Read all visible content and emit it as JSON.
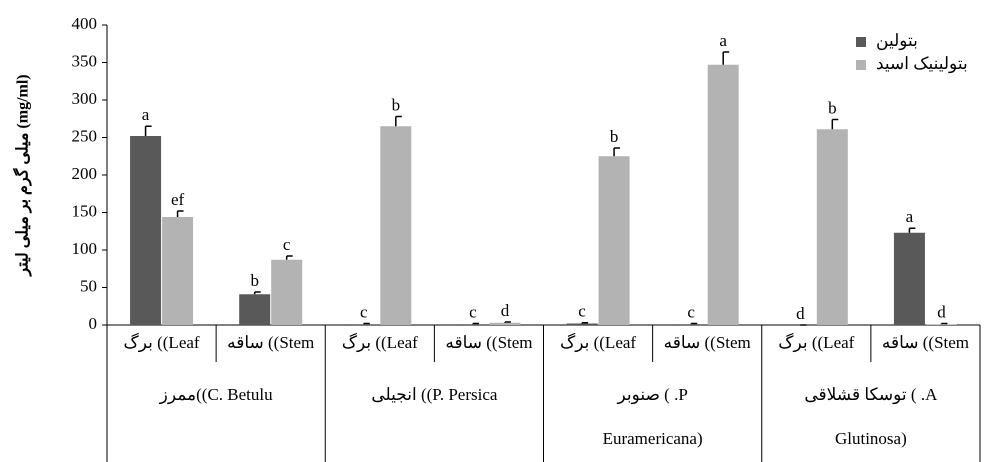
{
  "chart_data": {
    "type": "bar",
    "y_label": "میلی گرم بر میلی لیتر (mg/ml)",
    "categories": [
      "برگ ((Leaf",
      "ساقه ((Stem",
      "برگ ((Leaf",
      "ساقه ((Stem",
      "برگ ((Leaf",
      "ساقه ((Stem",
      "برگ ((Leaf",
      "ساقه ((Stem"
    ],
    "groups": [
      [
        "ممرز((C. Betulu"
      ],
      [
        "انجیلی ((P. Persica"
      ],
      [
        "صنوبر ( .P",
        "Euramericana)"
      ],
      [
        "توسکا قشلاقی ( .A",
        "Glutinosa)"
      ]
    ],
    "series": [
      {
        "name": "بتولین",
        "color": "#595959",
        "values": [
          252,
          41,
          1,
          1,
          2,
          1,
          0,
          123
        ],
        "errors": [
          13,
          3,
          1,
          1,
          1,
          1,
          0,
          6
        ],
        "labels": [
          "a",
          "b",
          "c",
          "c",
          "c",
          "c",
          "d",
          "a"
        ]
      },
      {
        "name": "بتولینیک اسید",
        "color": "#b3b3b3",
        "values": [
          144,
          87,
          265,
          3,
          225,
          347,
          261,
          1
        ],
        "errors": [
          8,
          5,
          13,
          1,
          11,
          17,
          13,
          1
        ],
        "labels": [
          "ef",
          "c",
          "b",
          "d",
          "b",
          "a",
          "b",
          "d"
        ]
      }
    ],
    "ylim": [
      0,
      400
    ],
    "yticks": [
      0,
      50,
      100,
      150,
      200,
      250,
      300,
      350,
      400
    ],
    "grid": false,
    "legend": "top-right"
  }
}
